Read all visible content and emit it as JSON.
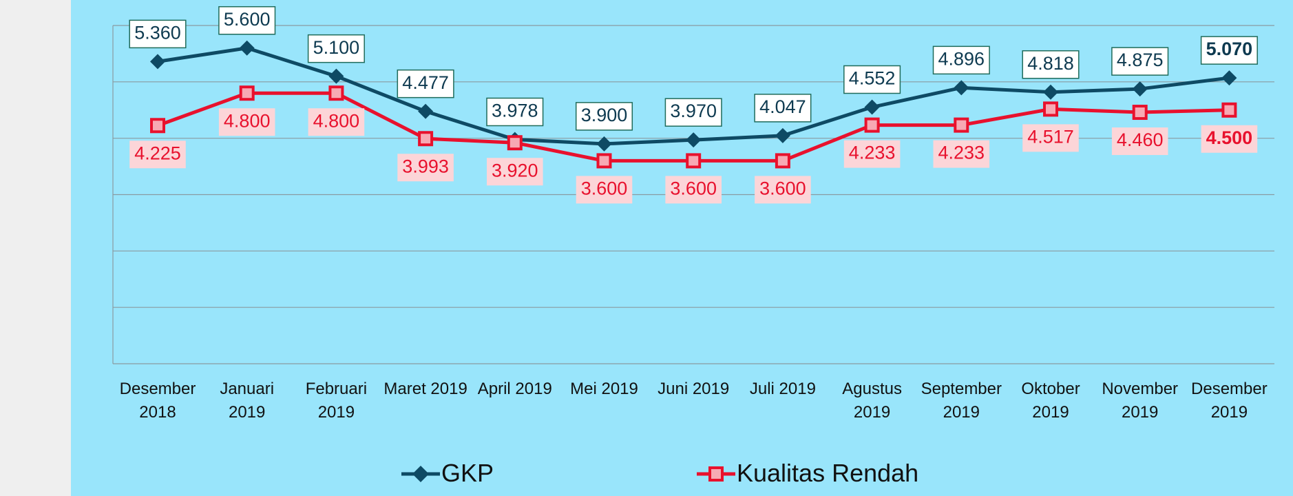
{
  "chart_data": {
    "type": "line",
    "categories": [
      "Desember 2018",
      "Januari 2019",
      "Februari 2019",
      "Maret 2019",
      "April 2019",
      "Mei 2019",
      "Juni 2019",
      "Juli 2019",
      "Agustus 2019",
      "September 2019",
      "Oktober 2019",
      "November 2019",
      "Desember 2019"
    ],
    "series": [
      {
        "name": "GKP",
        "color": "#0e4a64",
        "marker": "diamond",
        "values": [
          5.36,
          5.6,
          5.1,
          4.477,
          3.978,
          3.9,
          3.97,
          4.047,
          4.552,
          4.896,
          4.818,
          4.875,
          5.07
        ],
        "value_labels": [
          "5.360",
          "5.600",
          "5.100",
          "4.477",
          "3.978",
          "3.900",
          "3.970",
          "4.047",
          "4.552",
          "4.896",
          "4.818",
          "4.875",
          "5.070"
        ]
      },
      {
        "name": "Kualitas Rendah",
        "color": "#e8112d",
        "marker": "square",
        "values": [
          4.225,
          4.8,
          4.8,
          3.993,
          3.92,
          3.6,
          3.6,
          3.6,
          4.233,
          4.233,
          4.517,
          4.46,
          4.5
        ],
        "value_labels": [
          "4.225",
          "4.800",
          "4.800",
          "3.993",
          "3.920",
          "3.600",
          "3.600",
          "3.600",
          "4.233",
          "4.233",
          "4.517",
          "4.460",
          "4.500"
        ]
      }
    ],
    "ylim": [
      0,
      6
    ],
    "yticks": [
      0,
      1,
      2,
      3,
      4,
      5,
      6
    ],
    "grid": true,
    "legend": "bottom"
  }
}
